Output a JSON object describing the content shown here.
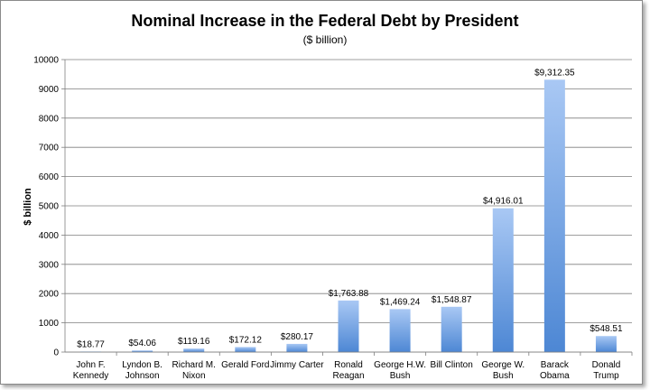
{
  "chart_data": {
    "type": "bar",
    "title": "Nominal Increase in the Federal Debt by President",
    "subtitle": "($ billion)",
    "xlabel": "",
    "ylabel": "$ billion",
    "ylim": [
      0,
      10000
    ],
    "yticks": [
      "0",
      "1000",
      "2000",
      "3000",
      "4000",
      "5000",
      "6000",
      "7000",
      "8000",
      "9000",
      "10000"
    ],
    "grid": true,
    "legend": "none",
    "bar_color_top": "#a9c8f4",
    "bar_color_bottom": "#4d87d4",
    "categories": [
      [
        "John F.",
        "Kennedy"
      ],
      [
        "Lyndon B.",
        "Johnson"
      ],
      [
        "Richard M.",
        "Nixon"
      ],
      [
        "Gerald Ford"
      ],
      [
        "Jimmy Carter"
      ],
      [
        "Ronald",
        "Reagan"
      ],
      [
        "George H.W.",
        "Bush"
      ],
      [
        "Bill Clinton"
      ],
      [
        "George W.",
        "Bush"
      ],
      [
        "Barack",
        "Obama"
      ],
      [
        "Donald",
        "Trump"
      ]
    ],
    "values": [
      18.77,
      54.06,
      119.16,
      172.12,
      280.17,
      1763.88,
      1469.24,
      1548.87,
      4916.01,
      9312.35,
      548.51
    ],
    "data_labels": [
      "$18.77",
      "$54.06",
      "$119.16",
      "$172.12",
      "$280.17",
      "$1,763.88",
      "$1,469.24",
      "$1,548.87",
      "$4,916.01",
      "$9,312.35",
      "$548.51"
    ]
  }
}
